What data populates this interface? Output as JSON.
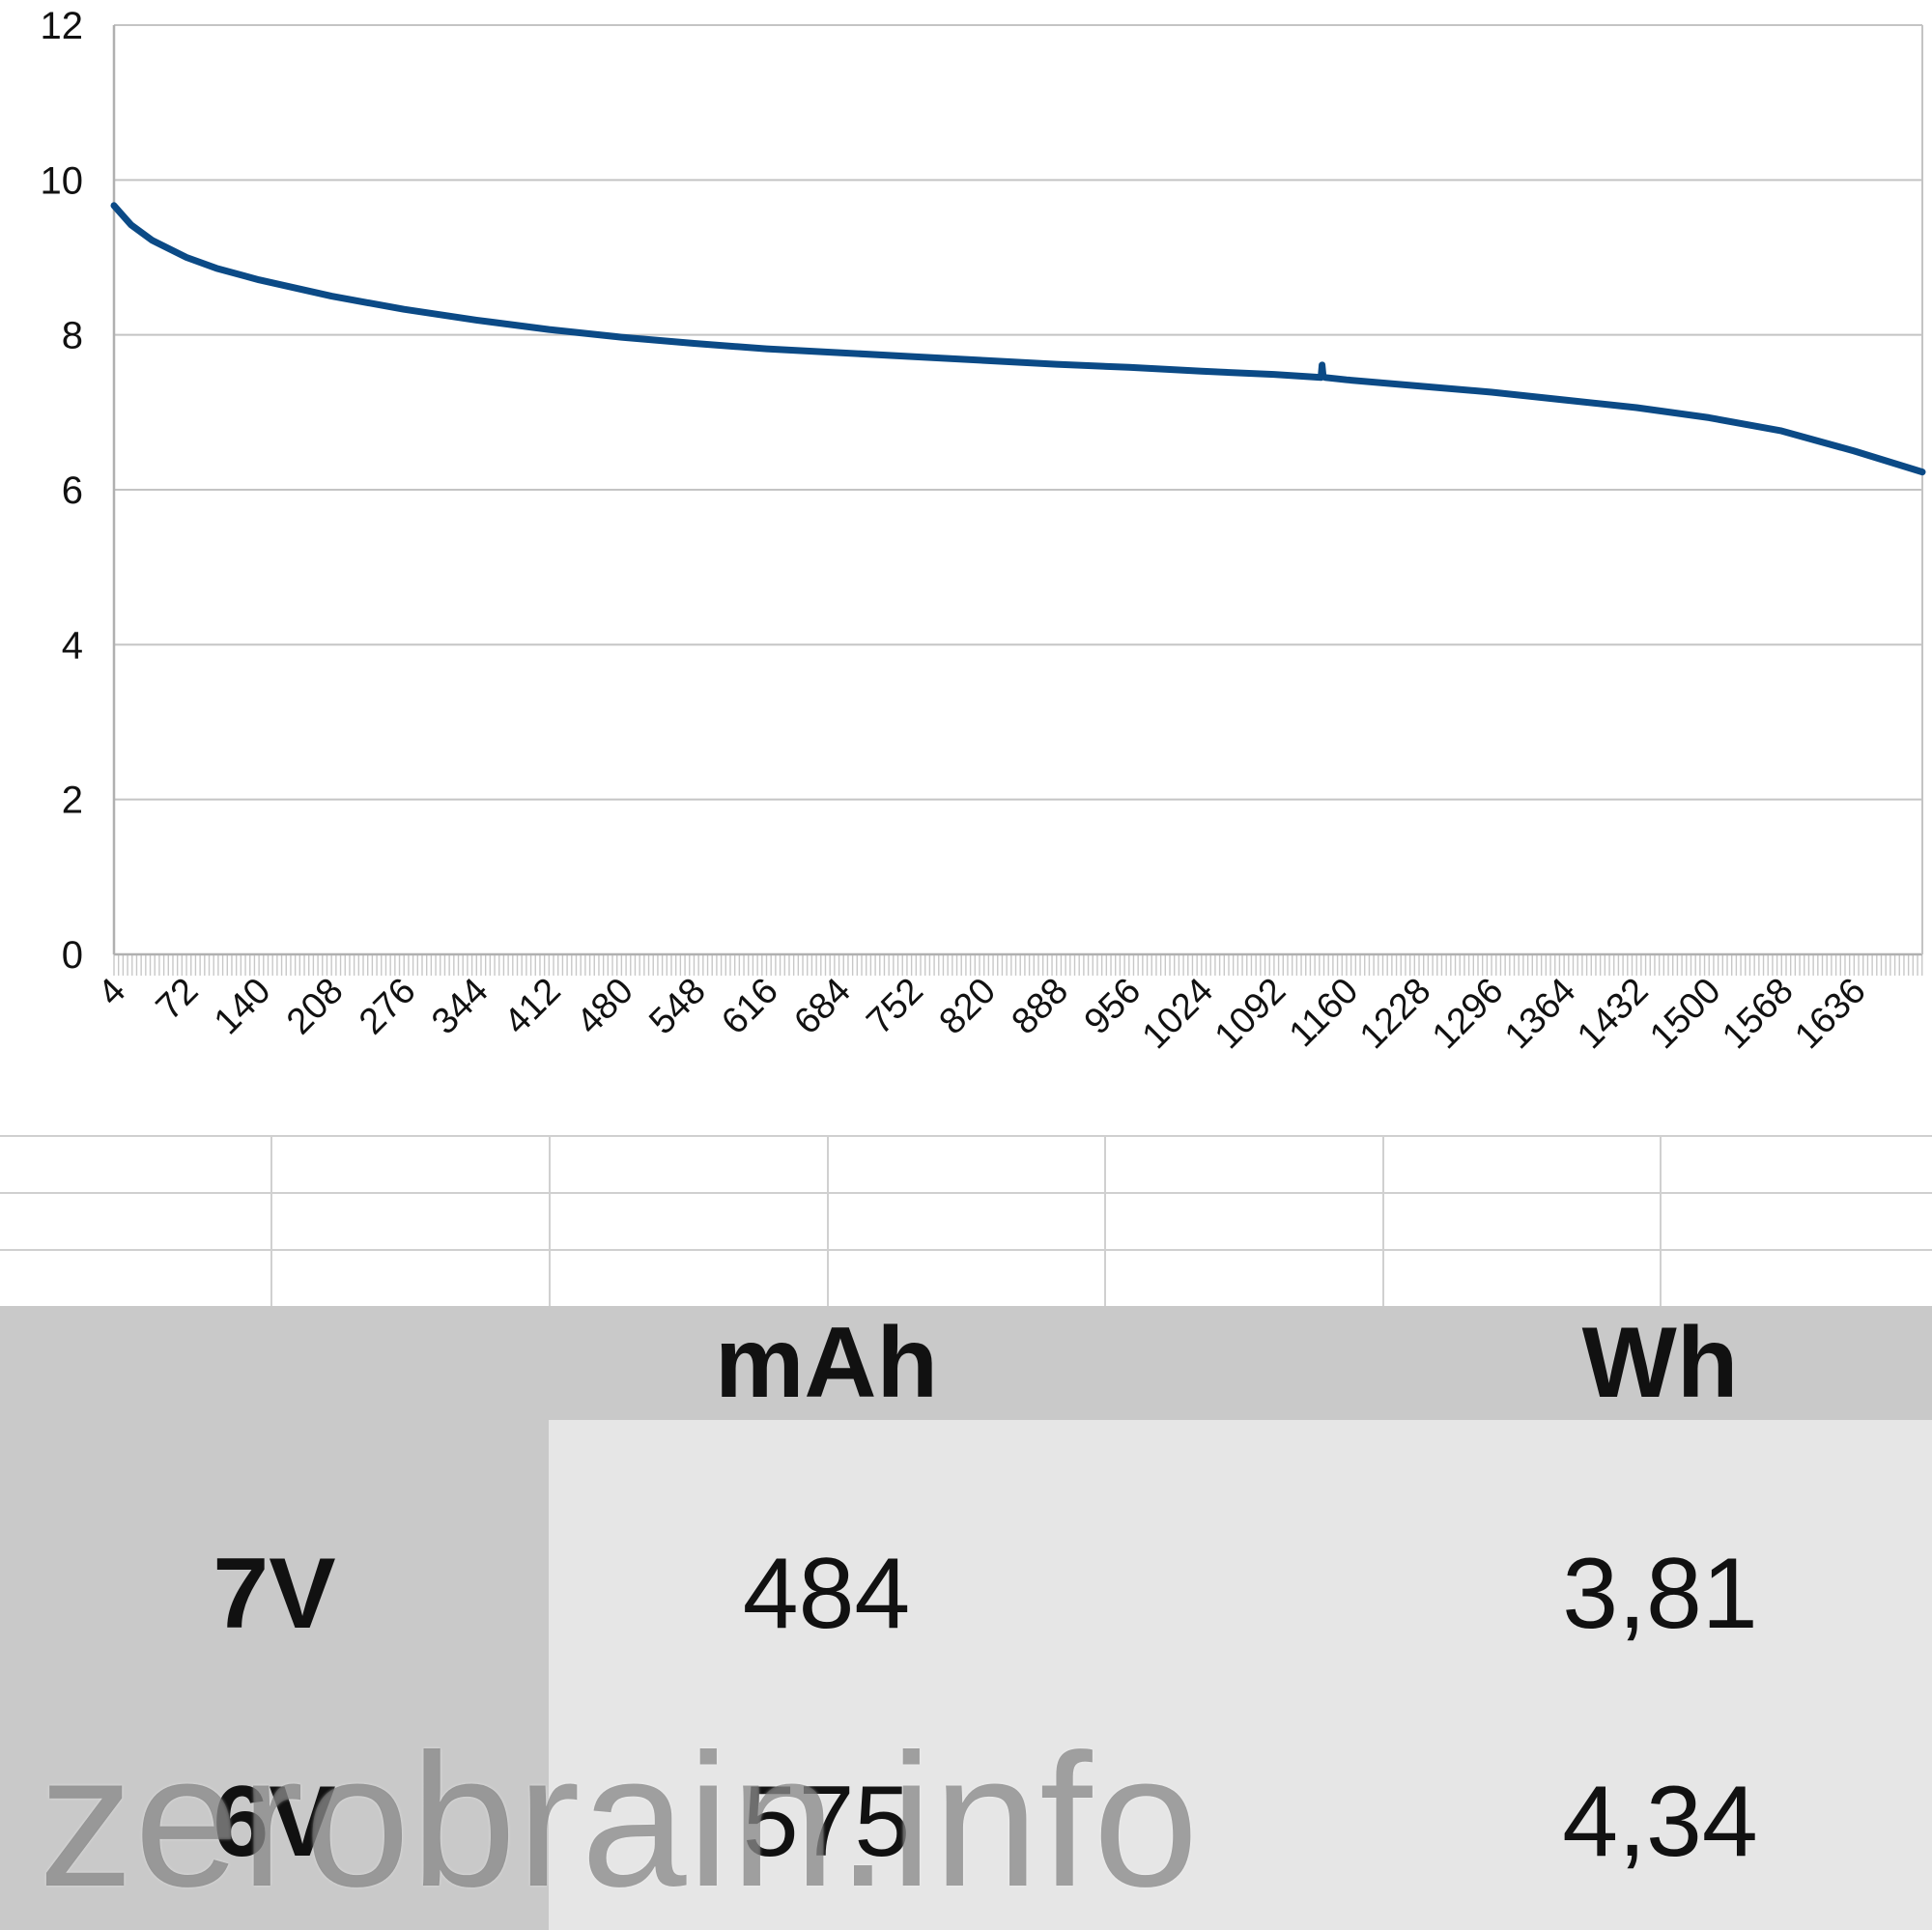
{
  "chart_data": {
    "type": "line",
    "title": "",
    "xlabel": "",
    "ylabel": "",
    "xlim": [
      4,
      1700
    ],
    "ylim": [
      0,
      12
    ],
    "y_ticks": [
      "0",
      "2",
      "4",
      "6",
      "8",
      "10",
      "12"
    ],
    "x_ticks": [
      "4",
      "72",
      "140",
      "208",
      "276",
      "344",
      "412",
      "480",
      "548",
      "616",
      "684",
      "752",
      "820",
      "888",
      "956",
      "1024",
      "1092",
      "1160",
      "1228",
      "1296",
      "1364",
      "1432",
      "1500",
      "1568",
      "1636"
    ],
    "grid": true,
    "legend": "none",
    "line_color": "#0b4a86",
    "series": [
      {
        "x": [
          4,
          20,
          40,
          72,
          100,
          140,
          208,
          276,
          344,
          412,
          480,
          548,
          616,
          684,
          752,
          820,
          888,
          956,
          1024,
          1092,
          1136,
          1137,
          1138,
          1140,
          1160,
          1228,
          1296,
          1364,
          1432,
          1500,
          1568,
          1636,
          1700
        ],
        "y": [
          9.67,
          9.42,
          9.22,
          9.0,
          8.86,
          8.71,
          8.5,
          8.33,
          8.19,
          8.07,
          7.97,
          7.89,
          7.82,
          7.77,
          7.72,
          7.67,
          7.62,
          7.58,
          7.53,
          7.49,
          7.45,
          7.61,
          7.47,
          7.45,
          7.42,
          7.34,
          7.26,
          7.16,
          7.06,
          6.93,
          6.76,
          6.5,
          6.23
        ]
      }
    ]
  },
  "table": {
    "headers": [
      "",
      "mAh",
      "Wh"
    ],
    "rows": [
      {
        "label": "7V",
        "mah": "484",
        "wh": "3,81"
      },
      {
        "label": "6V",
        "mah": "575",
        "wh": "4,34"
      }
    ]
  },
  "watermark": "zerobrain.info",
  "colors": {
    "header_band": "#c9c9c9",
    "row_label_band": "#c9c9c9",
    "value_band": "#e6e6e6",
    "grid": "#c4c4c4"
  }
}
